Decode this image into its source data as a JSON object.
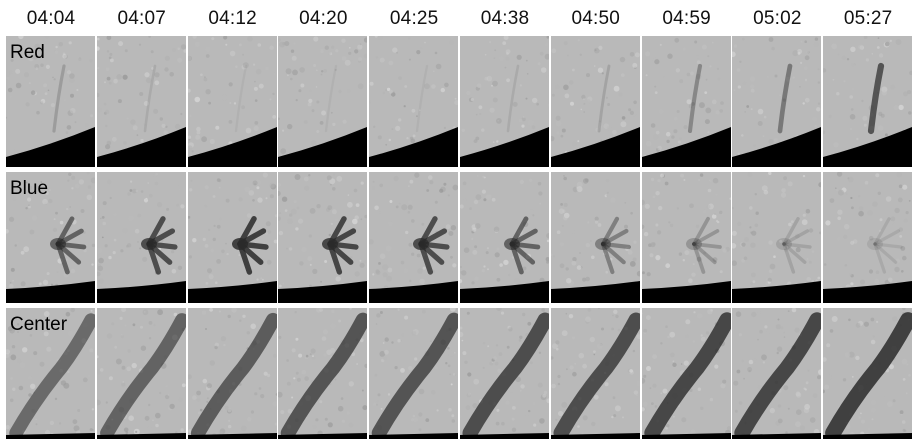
{
  "times": [
    "04:04",
    "04:07",
    "04:12",
    "04:20",
    "04:25",
    "04:38",
    "04:50",
    "04:59",
    "05:02",
    "05:27"
  ],
  "rows": [
    {
      "label": "Red"
    },
    {
      "label": "Blue"
    },
    {
      "label": "Center"
    }
  ],
  "colors": {
    "background_gray": "#b9b9b9",
    "feature_dark": "#2a2a2a",
    "limb_black": "#000000"
  }
}
